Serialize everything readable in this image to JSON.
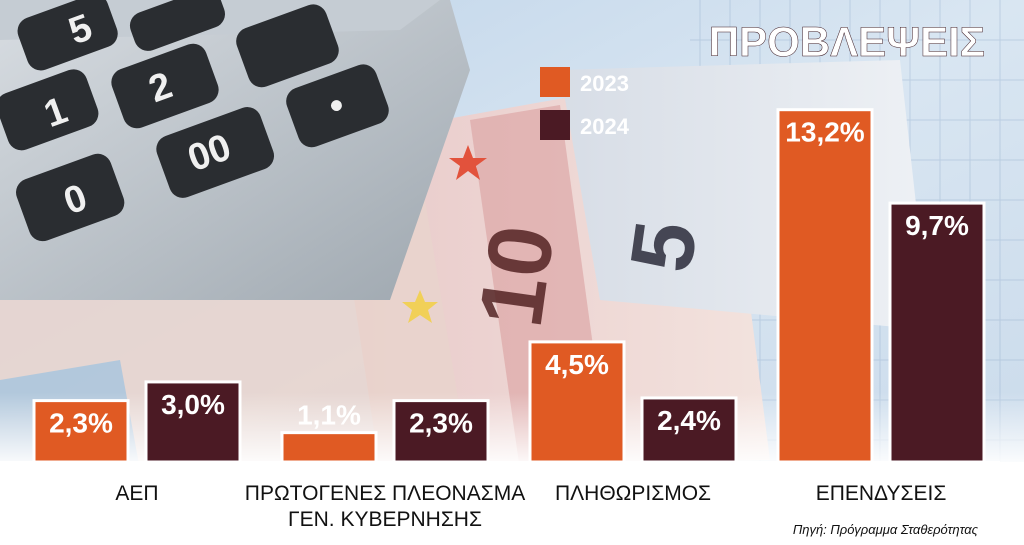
{
  "chart_data": {
    "type": "bar",
    "title": "ΠΡΟΒΛΕΨΕΙΣ",
    "categories": [
      [
        "ΑΕΠ"
      ],
      [
        "ΠΡΩΤΟΓΕΝΕΣ ΠΛΕΟΝΑΣΜΑ",
        "ΓΕΝ. ΚΥΒΕΡΝΗΣΗΣ"
      ],
      [
        "ΠΛΗΘΩΡΙΣΜΟΣ"
      ],
      [
        "ΕΠΕΝΔΥΣΕΙΣ"
      ]
    ],
    "series": [
      {
        "name": "2023",
        "color": "#e05a23",
        "values": [
          2.3,
          1.1,
          4.5,
          13.2
        ],
        "labels": [
          "2,3%",
          "1,1%",
          "4,5%",
          "13,2%"
        ]
      },
      {
        "name": "2024",
        "color": "#4b1a24",
        "values": [
          3.0,
          2.3,
          2.4,
          9.7
        ],
        "labels": [
          "3,0%",
          "2,3%",
          "2,4%",
          "9,7%"
        ]
      }
    ],
    "ylim": [
      0,
      14.5
    ],
    "grid": false,
    "legend": "top-center",
    "source": "Πηγή: Πρόγραμμα Σταθερότητας"
  }
}
